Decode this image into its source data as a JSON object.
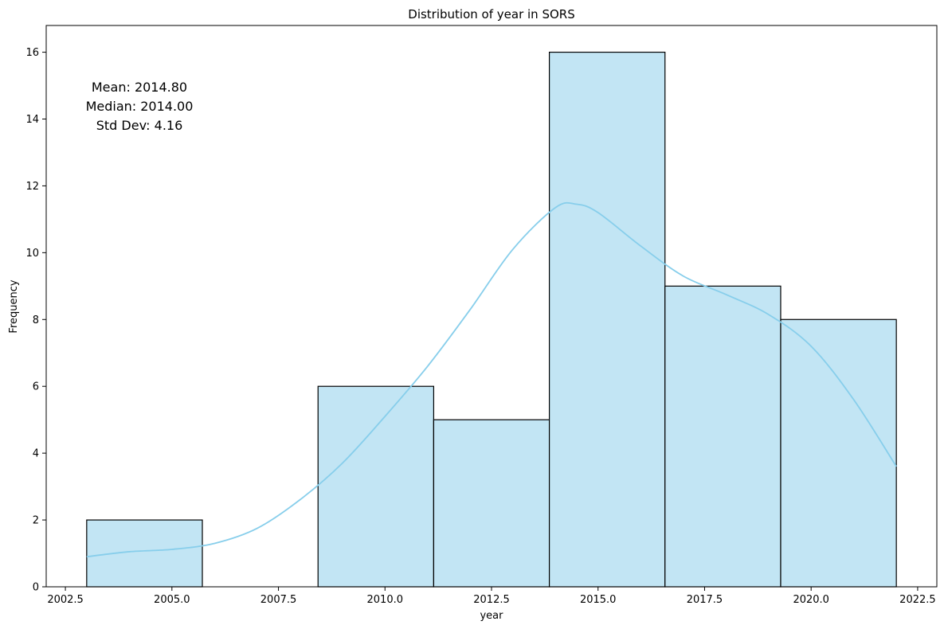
{
  "chart_data": {
    "type": "bar",
    "subtype": "histogram",
    "title": "Distribution of year in SORS",
    "xlabel": "year",
    "ylabel": "Frequency",
    "xlim": [
      2002.05,
      2022.95
    ],
    "ylim": [
      0,
      16.8
    ],
    "x_ticks": [
      2002.5,
      2005.0,
      2007.5,
      2010.0,
      2012.5,
      2015.0,
      2017.5,
      2020.0,
      2022.5
    ],
    "x_tick_labels": [
      "2002.5",
      "2005.0",
      "2007.5",
      "2010.0",
      "2012.5",
      "2015.0",
      "2017.5",
      "2020.0",
      "2022.5"
    ],
    "y_ticks": [
      0,
      2,
      4,
      6,
      8,
      10,
      12,
      14,
      16
    ],
    "y_tick_labels": [
      "0",
      "2",
      "4",
      "6",
      "8",
      "10",
      "12",
      "14",
      "16"
    ],
    "bins": [
      {
        "x0": 2003.0,
        "x1": 2005.714,
        "count": 2
      },
      {
        "x0": 2005.714,
        "x1": 2008.429,
        "count": 0
      },
      {
        "x0": 2008.429,
        "x1": 2011.143,
        "count": 6
      },
      {
        "x0": 2011.143,
        "x1": 2013.857,
        "count": 5
      },
      {
        "x0": 2013.857,
        "x1": 2016.571,
        "count": 16
      },
      {
        "x0": 2016.571,
        "x1": 2019.286,
        "count": 9
      },
      {
        "x0": 2019.286,
        "x1": 2022.0,
        "count": 8
      }
    ],
    "kde": {
      "x": [
        2003.0,
        2004.0,
        2005.0,
        2006.0,
        2007.0,
        2008.0,
        2009.0,
        2010.0,
        2011.0,
        2012.0,
        2013.0,
        2014.0,
        2014.5,
        2015.0,
        2016.0,
        2017.0,
        2018.0,
        2019.0,
        2020.0,
        2021.0,
        2022.0
      ],
      "y": [
        0.9,
        1.05,
        1.12,
        1.3,
        1.75,
        2.6,
        3.7,
        5.1,
        6.6,
        8.3,
        10.1,
        11.35,
        11.45,
        11.2,
        10.2,
        9.3,
        8.75,
        8.15,
        7.2,
        5.6,
        3.6
      ]
    },
    "bar_color": "#c2e5f4",
    "bar_edge_color": "#000000",
    "kde_color": "#87ceeb",
    "grid": false,
    "legend": "none",
    "annotation": {
      "lines": [
        "Mean: 2014.80",
        "Median: 2014.00",
        "Std Dev: 4.16"
      ],
      "placement": "top-left"
    }
  }
}
